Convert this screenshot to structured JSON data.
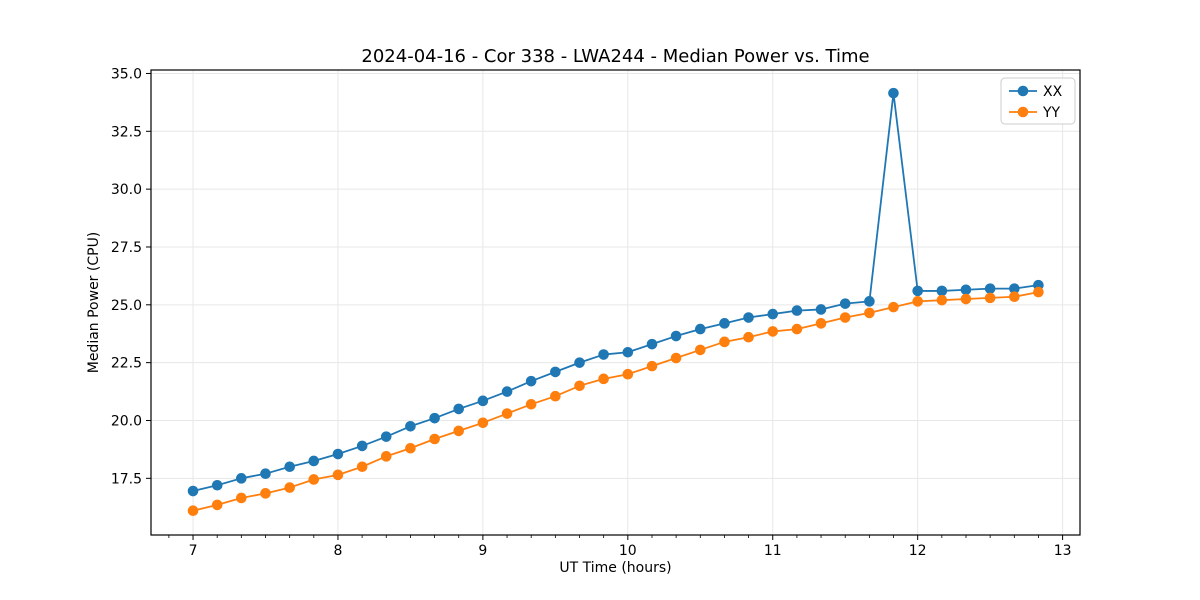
{
  "chart_data": {
    "type": "line",
    "title": "2024-04-16 - Cor 338 - LWA244 - Median Power vs. Time",
    "xlabel": "UT Time (hours)",
    "ylabel": "Median Power (CPU)",
    "xlim": [
      6.71,
      13.12
    ],
    "ylim": [
      15.05,
      35.15
    ],
    "xticks": [
      7,
      8,
      9,
      10,
      11,
      12,
      13
    ],
    "yticks": [
      17.5,
      20.0,
      22.5,
      25.0,
      27.5,
      30.0,
      32.5,
      35.0
    ],
    "x_minor_divisions_per_unit": 6,
    "grid": true,
    "grid_color": "#e7e7e7",
    "spine_color": "#000000",
    "background_color": "#ffffff",
    "legend_position": "upper right",
    "x": [
      7.0,
      7.167,
      7.333,
      7.5,
      7.667,
      7.833,
      8.0,
      8.167,
      8.333,
      8.5,
      8.667,
      8.833,
      9.0,
      9.167,
      9.333,
      9.5,
      9.667,
      9.833,
      10.0,
      10.167,
      10.333,
      10.5,
      10.667,
      10.833,
      11.0,
      11.167,
      11.333,
      11.5,
      11.667,
      11.833,
      12.0,
      12.167,
      12.333,
      12.5,
      12.667,
      12.833
    ],
    "series": [
      {
        "name": "XX",
        "color": "#1f77b4",
        "values": [
          16.95,
          17.2,
          17.5,
          17.7,
          18.0,
          18.25,
          18.55,
          18.9,
          19.3,
          19.75,
          20.1,
          20.5,
          20.85,
          21.25,
          21.7,
          22.1,
          22.5,
          22.85,
          22.95,
          23.3,
          23.65,
          23.95,
          24.2,
          24.45,
          24.6,
          24.75,
          24.8,
          25.05,
          25.15,
          34.15,
          25.6,
          25.6,
          25.65,
          25.7,
          25.7,
          25.85
        ]
      },
      {
        "name": "YY",
        "color": "#ff7f0e",
        "values": [
          16.1,
          16.35,
          16.65,
          16.85,
          17.1,
          17.45,
          17.65,
          18.0,
          18.45,
          18.8,
          19.2,
          19.55,
          19.9,
          20.3,
          20.7,
          21.05,
          21.5,
          21.8,
          22.0,
          22.35,
          22.7,
          23.05,
          23.4,
          23.6,
          23.85,
          23.95,
          24.2,
          24.45,
          24.65,
          24.9,
          25.15,
          25.2,
          25.25,
          25.3,
          25.35,
          25.55
        ]
      }
    ]
  }
}
